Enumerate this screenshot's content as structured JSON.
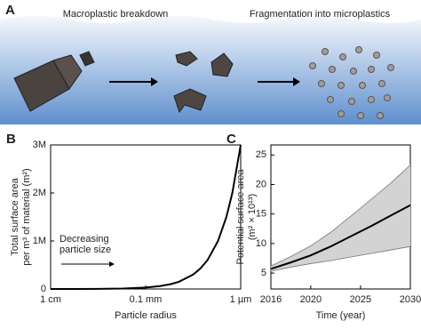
{
  "diagram": {
    "label": "A",
    "steps": [
      "Macroplastic breakdown",
      "Fragmentation into microplastics"
    ]
  },
  "chart_data": [
    {
      "type": "line",
      "label": "B",
      "xlabel": "Particle radius",
      "ylabel": [
        "Total surface area",
        "per m³ of material (m²)"
      ],
      "log_x": true,
      "xlim": [
        0.01,
        1e-06
      ],
      "xticks": [
        {
          "value": 0.01,
          "label": "1 cm"
        },
        {
          "value": 0.0001,
          "label": "0.1 mm"
        },
        {
          "value": 1e-06,
          "label": "1 µm"
        }
      ],
      "ylim": [
        0,
        3000000
      ],
      "yticks": [
        0,
        {
          "value": 1000000,
          "label": "1M"
        },
        {
          "value": 2000000,
          "label": "2M"
        },
        {
          "value": 3000000,
          "label": "3M"
        }
      ],
      "x": [
        0.01,
        0.003,
        0.001,
        0.0003,
        0.0001,
        5e-05,
        3e-05,
        2e-05,
        1e-05,
        7e-06,
        5e-06,
        3e-06,
        2e-06,
        1.5e-06,
        1e-06
      ],
      "values": [
        300,
        1000,
        3000,
        10000,
        30000,
        60000,
        100000,
        150000,
        300000,
        430000,
        600000,
        1000000,
        1500000,
        2000000,
        3000000
      ],
      "color": "#000000",
      "annotation": [
        "Decreasing",
        "particle size"
      ]
    },
    {
      "type": "band-line",
      "label": "C",
      "xlabel": "Time (year)",
      "ylabel": [
        "Potential surface area",
        "(m² × 10¹³)"
      ],
      "xlim": [
        2016,
        2030
      ],
      "xticks": [
        2016,
        2020,
        2025,
        2030
      ],
      "ylim": [
        2.3,
        26.7
      ],
      "yticks": [
        5,
        10,
        15,
        20,
        25
      ],
      "x": [
        2016,
        2018,
        2020,
        2022,
        2024,
        2026,
        2028,
        2030
      ],
      "values": [
        5.7,
        6.8,
        8.0,
        9.5,
        11.2,
        12.9,
        14.7,
        16.5
      ],
      "lower": [
        5.3,
        6.0,
        6.6,
        7.1,
        7.7,
        8.3,
        8.9,
        9.5
      ],
      "upper": [
        6.2,
        7.8,
        9.6,
        11.9,
        14.6,
        17.4,
        20.2,
        23.3
      ],
      "color": "#000000",
      "band_color": "#d3d3d3"
    }
  ]
}
